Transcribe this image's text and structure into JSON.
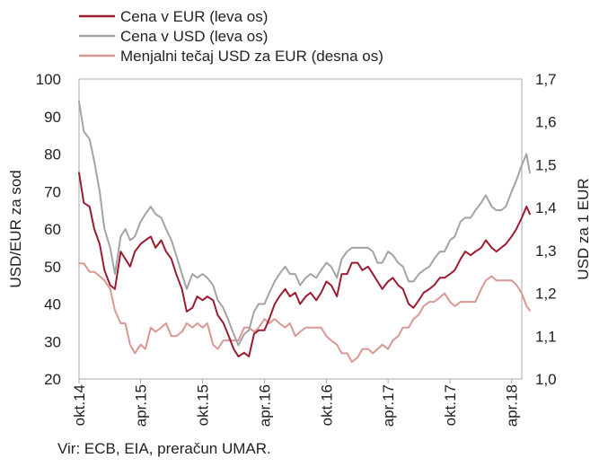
{
  "chart_data": {
    "type": "line",
    "title": "",
    "xlabel": "",
    "ylabel": "USD/EUR za sod",
    "y2label": "USD za 1 EUR",
    "ylim": [
      20,
      100
    ],
    "y2lim": [
      1.0,
      1.7
    ],
    "yticks": [
      "100",
      "90",
      "80",
      "70",
      "60",
      "50",
      "40",
      "30",
      "20"
    ],
    "y2ticks": [
      "1,7",
      "1,6",
      "1,5",
      "1,4",
      "1,3",
      "1,2",
      "1,1",
      "1,0"
    ],
    "xticks": [
      "okt.14",
      "apr.15",
      "okt.15",
      "apr.16",
      "okt.16",
      "apr.17",
      "okt.17",
      "apr.18"
    ],
    "x_start": "2014-10",
    "x_end": "2018-05",
    "legend_position": "top",
    "grid": false,
    "series": [
      {
        "name": "Cena v EUR (leva os)",
        "axis": "left",
        "color": "#9b1b30",
        "x": [
          "2014-10-01",
          "2014-10-15",
          "2014-11-01",
          "2014-11-15",
          "2014-12-01",
          "2014-12-15",
          "2015-01-01",
          "2015-01-15",
          "2015-02-01",
          "2015-02-15",
          "2015-03-01",
          "2015-03-15",
          "2015-04-01",
          "2015-04-15",
          "2015-05-01",
          "2015-05-15",
          "2015-06-01",
          "2015-06-15",
          "2015-07-01",
          "2015-07-15",
          "2015-08-01",
          "2015-08-15",
          "2015-09-01",
          "2015-09-15",
          "2015-10-01",
          "2015-10-15",
          "2015-11-01",
          "2015-11-15",
          "2015-12-01",
          "2015-12-15",
          "2016-01-01",
          "2016-01-15",
          "2016-02-01",
          "2016-02-15",
          "2016-03-01",
          "2016-03-15",
          "2016-04-01",
          "2016-04-15",
          "2016-05-01",
          "2016-05-15",
          "2016-06-01",
          "2016-06-15",
          "2016-07-01",
          "2016-07-15",
          "2016-08-01",
          "2016-08-15",
          "2016-09-01",
          "2016-09-15",
          "2016-10-01",
          "2016-10-15",
          "2016-11-01",
          "2016-11-15",
          "2016-12-01",
          "2016-12-15",
          "2017-01-01",
          "2017-01-15",
          "2017-02-01",
          "2017-02-15",
          "2017-03-01",
          "2017-03-15",
          "2017-04-01",
          "2017-04-15",
          "2017-05-01",
          "2017-05-15",
          "2017-06-01",
          "2017-06-15",
          "2017-07-01",
          "2017-07-15",
          "2017-08-01",
          "2017-08-15",
          "2017-09-01",
          "2017-09-15",
          "2017-10-01",
          "2017-10-15",
          "2017-11-01",
          "2017-11-15",
          "2017-12-01",
          "2017-12-15",
          "2018-01-01",
          "2018-01-15",
          "2018-02-01",
          "2018-02-15",
          "2018-03-01",
          "2018-03-15",
          "2018-04-01",
          "2018-04-15",
          "2018-05-01",
          "2018-05-15",
          "2018-05-25"
        ],
        "values": [
          75,
          67,
          66,
          60,
          56,
          49,
          45,
          44,
          54,
          52,
          50,
          54,
          56,
          57,
          58,
          55,
          57,
          54,
          52,
          48,
          44,
          38,
          39,
          42,
          41,
          42,
          41,
          37,
          35,
          32,
          28,
          26,
          27,
          26,
          32,
          33,
          33,
          36,
          40,
          42,
          44,
          42,
          43,
          40,
          42,
          43,
          41,
          43,
          46,
          45,
          42,
          48,
          48,
          51,
          51,
          49,
          50,
          48,
          46,
          44,
          46,
          47,
          45,
          44,
          40,
          39,
          41,
          43,
          44,
          45,
          47,
          47,
          48,
          49,
          52,
          54,
          53,
          54,
          55,
          57,
          55,
          54,
          55,
          56,
          58,
          60,
          63,
          66,
          64
        ]
      },
      {
        "name": "Cena v USD (leva os)",
        "axis": "left",
        "color": "#a3a3a3",
        "x": [
          "2014-10-01",
          "2014-10-15",
          "2014-11-01",
          "2014-11-15",
          "2014-12-01",
          "2014-12-15",
          "2015-01-01",
          "2015-01-15",
          "2015-02-01",
          "2015-02-15",
          "2015-03-01",
          "2015-03-15",
          "2015-04-01",
          "2015-04-15",
          "2015-05-01",
          "2015-05-15",
          "2015-06-01",
          "2015-06-15",
          "2015-07-01",
          "2015-07-15",
          "2015-08-01",
          "2015-08-15",
          "2015-09-01",
          "2015-09-15",
          "2015-10-01",
          "2015-10-15",
          "2015-11-01",
          "2015-11-15",
          "2015-12-01",
          "2015-12-15",
          "2016-01-01",
          "2016-01-15",
          "2016-02-01",
          "2016-02-15",
          "2016-03-01",
          "2016-03-15",
          "2016-04-01",
          "2016-04-15",
          "2016-05-01",
          "2016-05-15",
          "2016-06-01",
          "2016-06-15",
          "2016-07-01",
          "2016-07-15",
          "2016-08-01",
          "2016-08-15",
          "2016-09-01",
          "2016-09-15",
          "2016-10-01",
          "2016-10-15",
          "2016-11-01",
          "2016-11-15",
          "2016-12-01",
          "2016-12-15",
          "2017-01-01",
          "2017-01-15",
          "2017-02-01",
          "2017-02-15",
          "2017-03-01",
          "2017-03-15",
          "2017-04-01",
          "2017-04-15",
          "2017-05-01",
          "2017-05-15",
          "2017-06-01",
          "2017-06-15",
          "2017-07-01",
          "2017-07-15",
          "2017-08-01",
          "2017-08-15",
          "2017-09-01",
          "2017-09-15",
          "2017-10-01",
          "2017-10-15",
          "2017-11-01",
          "2017-11-15",
          "2017-12-01",
          "2017-12-15",
          "2018-01-01",
          "2018-01-15",
          "2018-02-01",
          "2018-02-15",
          "2018-03-01",
          "2018-03-15",
          "2018-04-01",
          "2018-04-15",
          "2018-05-01",
          "2018-05-15",
          "2018-05-25"
        ],
        "values": [
          94,
          86,
          84,
          78,
          70,
          60,
          55,
          48,
          58,
          60,
          57,
          58,
          62,
          64,
          66,
          64,
          63,
          60,
          57,
          53,
          48,
          44,
          48,
          47,
          48,
          47,
          45,
          41,
          39,
          36,
          32,
          29,
          32,
          33,
          38,
          40,
          40,
          43,
          46,
          48,
          50,
          48,
          48,
          45,
          47,
          48,
          47,
          49,
          51,
          50,
          47,
          52,
          54,
          55,
          55,
          55,
          55,
          54,
          51,
          51,
          54,
          53,
          51,
          50,
          46,
          46,
          48,
          49,
          50,
          52,
          54,
          54,
          57,
          58,
          62,
          63,
          63,
          65,
          67,
          69,
          66,
          65,
          65,
          66,
          70,
          73,
          77,
          80,
          75
        ]
      },
      {
        "name": "Menjalni tečaj USD za EUR (desna os)",
        "axis": "right",
        "color": "#d99893",
        "x": [
          "2014-10-01",
          "2014-10-15",
          "2014-11-01",
          "2014-11-15",
          "2014-12-01",
          "2014-12-15",
          "2015-01-01",
          "2015-01-15",
          "2015-02-01",
          "2015-02-15",
          "2015-03-01",
          "2015-03-15",
          "2015-04-01",
          "2015-04-15",
          "2015-05-01",
          "2015-05-15",
          "2015-06-01",
          "2015-06-15",
          "2015-07-01",
          "2015-07-15",
          "2015-08-01",
          "2015-08-15",
          "2015-09-01",
          "2015-09-15",
          "2015-10-01",
          "2015-10-15",
          "2015-11-01",
          "2015-11-15",
          "2015-12-01",
          "2015-12-15",
          "2016-01-01",
          "2016-01-15",
          "2016-02-01",
          "2016-02-15",
          "2016-03-01",
          "2016-03-15",
          "2016-04-01",
          "2016-04-15",
          "2016-05-01",
          "2016-05-15",
          "2016-06-01",
          "2016-06-15",
          "2016-07-01",
          "2016-07-15",
          "2016-08-01",
          "2016-08-15",
          "2016-09-01",
          "2016-09-15",
          "2016-10-01",
          "2016-10-15",
          "2016-11-01",
          "2016-11-15",
          "2016-12-01",
          "2016-12-15",
          "2017-01-01",
          "2017-01-15",
          "2017-02-01",
          "2017-02-15",
          "2017-03-01",
          "2017-03-15",
          "2017-04-01",
          "2017-04-15",
          "2017-05-01",
          "2017-05-15",
          "2017-06-01",
          "2017-06-15",
          "2017-07-01",
          "2017-07-15",
          "2017-08-01",
          "2017-08-15",
          "2017-09-01",
          "2017-09-15",
          "2017-10-01",
          "2017-10-15",
          "2017-11-01",
          "2017-11-15",
          "2017-12-01",
          "2017-12-15",
          "2018-01-01",
          "2018-01-15",
          "2018-02-01",
          "2018-02-15",
          "2018-03-01",
          "2018-03-15",
          "2018-04-01",
          "2018-04-15",
          "2018-05-01",
          "2018-05-15",
          "2018-05-25"
        ],
        "values": [
          1.27,
          1.27,
          1.25,
          1.25,
          1.24,
          1.23,
          1.21,
          1.16,
          1.13,
          1.13,
          1.08,
          1.06,
          1.08,
          1.07,
          1.12,
          1.11,
          1.12,
          1.13,
          1.1,
          1.1,
          1.11,
          1.13,
          1.12,
          1.13,
          1.12,
          1.13,
          1.08,
          1.07,
          1.09,
          1.09,
          1.09,
          1.09,
          1.12,
          1.12,
          1.11,
          1.12,
          1.14,
          1.13,
          1.14,
          1.13,
          1.12,
          1.13,
          1.1,
          1.11,
          1.12,
          1.12,
          1.12,
          1.12,
          1.1,
          1.09,
          1.08,
          1.06,
          1.06,
          1.04,
          1.05,
          1.07,
          1.07,
          1.06,
          1.07,
          1.08,
          1.07,
          1.09,
          1.1,
          1.12,
          1.12,
          1.14,
          1.15,
          1.17,
          1.18,
          1.18,
          1.19,
          1.2,
          1.18,
          1.17,
          1.18,
          1.18,
          1.18,
          1.18,
          1.21,
          1.23,
          1.24,
          1.23,
          1.23,
          1.23,
          1.23,
          1.22,
          1.2,
          1.17,
          1.16
        ]
      }
    ]
  },
  "source_text": "Vir: ECB, EIA, preračun UMAR."
}
